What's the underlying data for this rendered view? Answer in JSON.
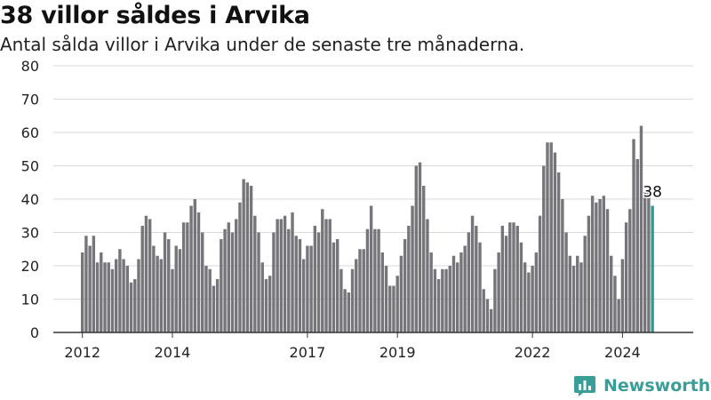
{
  "header": {
    "title": "38 villor såldes i Arvika",
    "subtitle": "Antal sålda villor i Arvika under de senaste tre månaderna."
  },
  "brand": {
    "name": "Newsworthy",
    "logo_icon": "newsworthy-logo-icon",
    "color": "#3a9e98"
  },
  "colors": {
    "bar": "#767579",
    "highlight": "#2a9d8f",
    "grid": "#d9d9d9",
    "axis": "#333333"
  },
  "chart_data": {
    "type": "bar",
    "title": "38 villor såldes i Arvika",
    "subtitle": "Antal sålda villor i Arvika under de senaste tre månaderna.",
    "xlabel": "",
    "ylabel": "",
    "ylim": [
      0,
      80
    ],
    "yticks": [
      0,
      10,
      20,
      30,
      40,
      50,
      60,
      70,
      80
    ],
    "grid": true,
    "start": "2012-01",
    "frequency": "monthly",
    "xtick_labels": [
      {
        "label": "2012",
        "index": 0
      },
      {
        "label": "2014",
        "index": 24
      },
      {
        "label": "2017",
        "index": 60
      },
      {
        "label": "2019",
        "index": 84
      },
      {
        "label": "2022",
        "index": 120
      },
      {
        "label": "2024",
        "index": 144
      }
    ],
    "values": [
      24,
      29,
      26,
      29,
      21,
      24,
      21,
      21,
      19,
      22,
      25,
      22,
      20,
      15,
      16,
      22,
      32,
      35,
      34,
      26,
      23,
      22,
      30,
      28,
      19,
      26,
      25,
      33,
      33,
      38,
      40,
      36,
      30,
      20,
      19,
      14,
      16,
      28,
      31,
      33,
      30,
      34,
      39,
      46,
      45,
      44,
      35,
      30,
      21,
      16,
      17,
      30,
      34,
      34,
      35,
      31,
      36,
      29,
      28,
      22,
      26,
      26,
      32,
      30,
      37,
      34,
      34,
      27,
      28,
      19,
      13,
      12,
      19,
      22,
      25,
      25,
      31,
      38,
      31,
      31,
      24,
      20,
      14,
      14,
      17,
      23,
      28,
      32,
      38,
      50,
      51,
      44,
      34,
      24,
      19,
      16,
      19,
      19,
      20,
      23,
      21,
      24,
      26,
      30,
      35,
      32,
      27,
      13,
      10,
      7,
      19,
      24,
      32,
      29,
      33,
      33,
      32,
      27,
      21,
      18,
      20,
      24,
      35,
      50,
      57,
      57,
      54,
      48,
      40,
      30,
      23,
      20,
      23,
      21,
      29,
      35,
      41,
      39,
      40,
      41,
      37,
      23,
      17,
      10,
      22,
      33,
      37,
      58,
      52,
      62,
      42,
      42,
      38
    ],
    "highlight_last": true,
    "annotation": "38"
  }
}
